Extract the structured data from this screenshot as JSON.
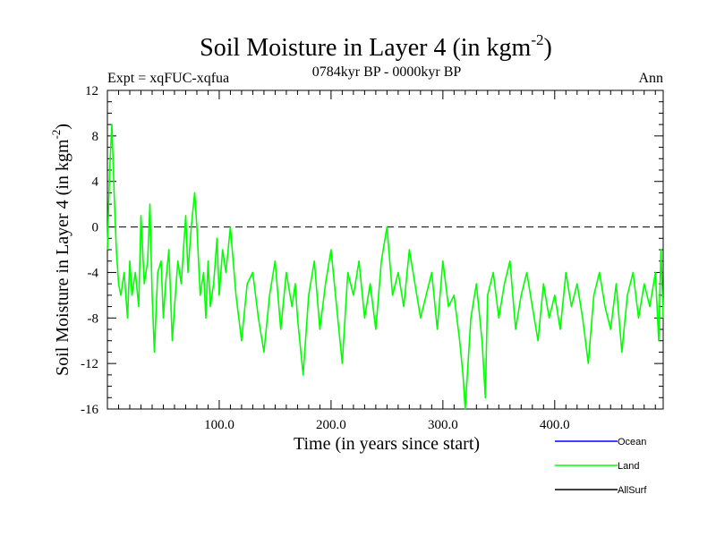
{
  "colors": {
    "ocean": "#0000ff",
    "land": "#00ff00",
    "allsurf": "#000000",
    "axis": "#000000",
    "zero_line": "#000000"
  },
  "chart_data": {
    "type": "line",
    "title": "Soil Moisture in Layer 4 (in kgm",
    "title_sup": "-2",
    "title_end": ")",
    "subtitle": "0784kyr BP - 0000kyr BP",
    "expt_label": "Expt = xqFUC-xqfua",
    "season_label": "Ann",
    "xlabel": "Time (in years since start)",
    "ylabel": "Soil Moisture in Layer 4 (in kgm",
    "ylabel_sup": "-2",
    "ylabel_end": ")",
    "xlim": [
      0,
      497
    ],
    "ylim": [
      -16,
      12
    ],
    "x_ticks": [
      100,
      200,
      300,
      400
    ],
    "x_tick_labels": [
      "100.0",
      "200.0",
      "300.0",
      "400.0"
    ],
    "y_ticks": [
      -16,
      -12,
      -8,
      -4,
      0,
      4,
      8,
      12
    ],
    "y_tick_labels": [
      "-16",
      "-12",
      "-8",
      "-4",
      "0",
      "4",
      "8",
      "12"
    ],
    "zero_line": 0,
    "legend": [
      {
        "name": "Ocean",
        "key": "ocean"
      },
      {
        "name": "Land",
        "key": "land"
      },
      {
        "name": "AllSurf",
        "key": "allsurf"
      }
    ],
    "series": [
      {
        "name": "Land",
        "color_key": "land",
        "x": [
          0,
          2,
          4,
          6,
          8,
          10,
          12,
          15,
          18,
          20,
          22,
          25,
          28,
          30,
          33,
          36,
          38,
          40,
          42,
          45,
          48,
          50,
          52,
          55,
          58,
          60,
          63,
          66,
          68,
          70,
          72,
          75,
          78,
          80,
          83,
          86,
          88,
          90,
          92,
          95,
          98,
          100,
          103,
          106,
          110,
          115,
          120,
          125,
          130,
          135,
          140,
          145,
          150,
          155,
          160,
          165,
          168,
          170,
          175,
          180,
          185,
          190,
          195,
          200,
          205,
          210,
          215,
          220,
          225,
          230,
          235,
          240,
          245,
          250,
          255,
          260,
          265,
          270,
          275,
          280,
          285,
          290,
          295,
          300,
          305,
          310,
          315,
          318,
          320,
          325,
          330,
          335,
          338,
          340,
          345,
          350,
          355,
          360,
          365,
          370,
          375,
          380,
          385,
          390,
          395,
          400,
          405,
          410,
          415,
          420,
          425,
          430,
          435,
          440,
          445,
          450,
          455,
          460,
          465,
          470,
          475,
          480,
          485,
          490,
          493,
          495,
          497
        ],
        "values": [
          -2,
          5,
          9,
          3,
          -2,
          -5,
          -6,
          -4,
          -8,
          -3,
          -6,
          -4,
          -7,
          1,
          -5,
          -3,
          2,
          -6,
          -11,
          -4,
          -3,
          -8,
          -5,
          -2,
          -10,
          -7,
          -3,
          -5,
          -2,
          1,
          -4,
          0,
          3,
          0,
          -6,
          -4,
          -8,
          -3,
          -7,
          -5,
          -1,
          -6,
          -2,
          -4,
          0,
          -6,
          -10,
          -5,
          -4,
          -8,
          -11,
          -6,
          -3,
          -9,
          -4,
          -7,
          -5,
          -8,
          -13,
          -6,
          -3,
          -9,
          -5,
          -2,
          -7,
          -12,
          -4,
          -6,
          -3,
          -8,
          -5,
          -9,
          -3,
          0,
          -6,
          -4,
          -7,
          -2,
          -5,
          -8,
          -6,
          -4,
          -9,
          -3,
          -7,
          -6,
          -10,
          -13,
          -16,
          -8,
          -5,
          -10,
          -15,
          -6,
          -4,
          -8,
          -5,
          -3,
          -9,
          -6,
          -4,
          -7,
          -10,
          -5,
          -8,
          -6,
          -9,
          -4,
          -7,
          -5,
          -8,
          -12,
          -6,
          -4,
          -7,
          -9,
          -5,
          -11,
          -6,
          -4,
          -8,
          -5,
          -7,
          -4,
          -10,
          -2,
          -8
        ]
      }
    ]
  }
}
